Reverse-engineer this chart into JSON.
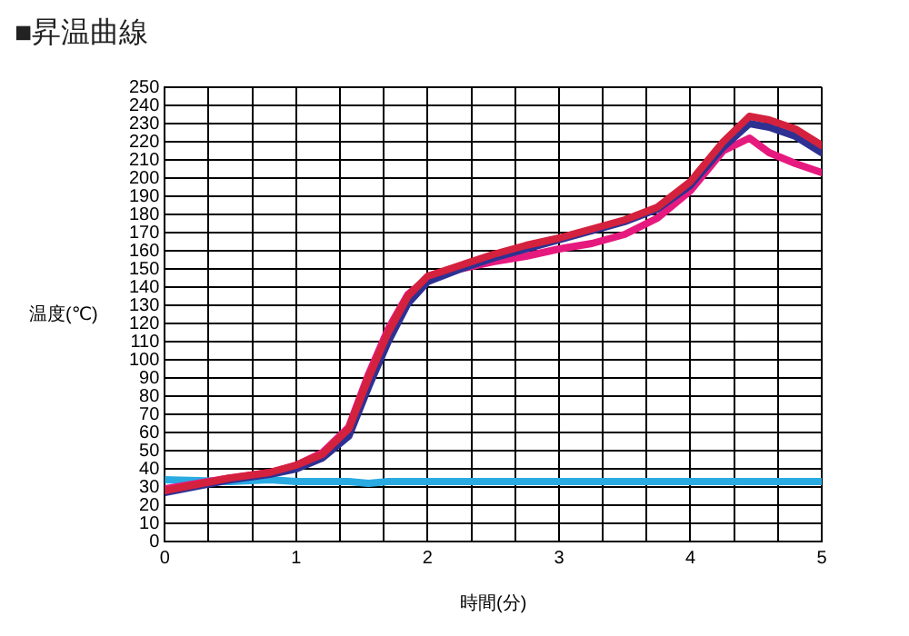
{
  "chart_data": {
    "type": "line",
    "title": "■昇温曲線",
    "xlabel": "時間(分)",
    "ylabel": "温度(℃)",
    "xlim": [
      0,
      5
    ],
    "xticks": [
      0,
      {
        "value": 0.333,
        "label": null
      },
      {
        "value": 0.667,
        "label": null
      },
      1,
      {
        "value": 1.333,
        "label": null
      },
      {
        "value": 1.667,
        "label": null
      },
      2,
      {
        "value": 2.333,
        "label": null
      },
      {
        "value": 2.667,
        "label": null
      },
      3,
      {
        "value": 3.333,
        "label": null
      },
      {
        "value": 3.667,
        "label": null
      },
      4,
      {
        "value": 4.333,
        "label": null
      },
      {
        "value": 4.667,
        "label": null
      },
      5
    ],
    "ylim": [
      0,
      250
    ],
    "yticks": [
      0,
      10,
      20,
      30,
      40,
      50,
      60,
      70,
      80,
      90,
      100,
      110,
      120,
      130,
      140,
      150,
      160,
      170,
      180,
      190,
      200,
      210,
      220,
      230,
      240,
      250
    ],
    "grid": true,
    "marker": "none",
    "line_style": "solid",
    "legend": false,
    "x": [
      0,
      0.5,
      0.8,
      1.0,
      1.2,
      1.4,
      1.55,
      1.7,
      1.85,
      2.0,
      2.25,
      2.5,
      2.75,
      3.0,
      3.25,
      3.5,
      3.75,
      4.0,
      4.25,
      4.45,
      4.6,
      4.8,
      5.0
    ],
    "series": [
      {
        "color": "#d4213d",
        "values": [
          28,
          35,
          38,
          42,
          48,
          62,
          90,
          115,
          135,
          146,
          152,
          158,
          163,
          167,
          172,
          177,
          184,
          198,
          220,
          234,
          232,
          227,
          218
        ]
      },
      {
        "color": "#2e3192",
        "values": [
          27,
          34,
          37,
          40,
          46,
          58,
          85,
          110,
          131,
          143,
          150,
          156,
          161,
          166,
          171,
          176,
          183,
          196,
          217,
          230,
          228,
          223,
          214
        ]
      },
      {
        "color": "#e6197f",
        "values": [
          29,
          35,
          38,
          42,
          49,
          63,
          92,
          117,
          136,
          145,
          150,
          154,
          157,
          161,
          164,
          169,
          178,
          193,
          215,
          222,
          214,
          208,
          203
        ]
      },
      {
        "color": "#29abe2",
        "values": [
          34,
          33,
          34,
          33,
          33,
          33,
          32,
          33,
          33,
          33,
          33,
          33,
          33,
          33,
          33,
          33,
          33,
          33,
          33,
          33,
          33,
          33,
          33
        ]
      }
    ]
  }
}
